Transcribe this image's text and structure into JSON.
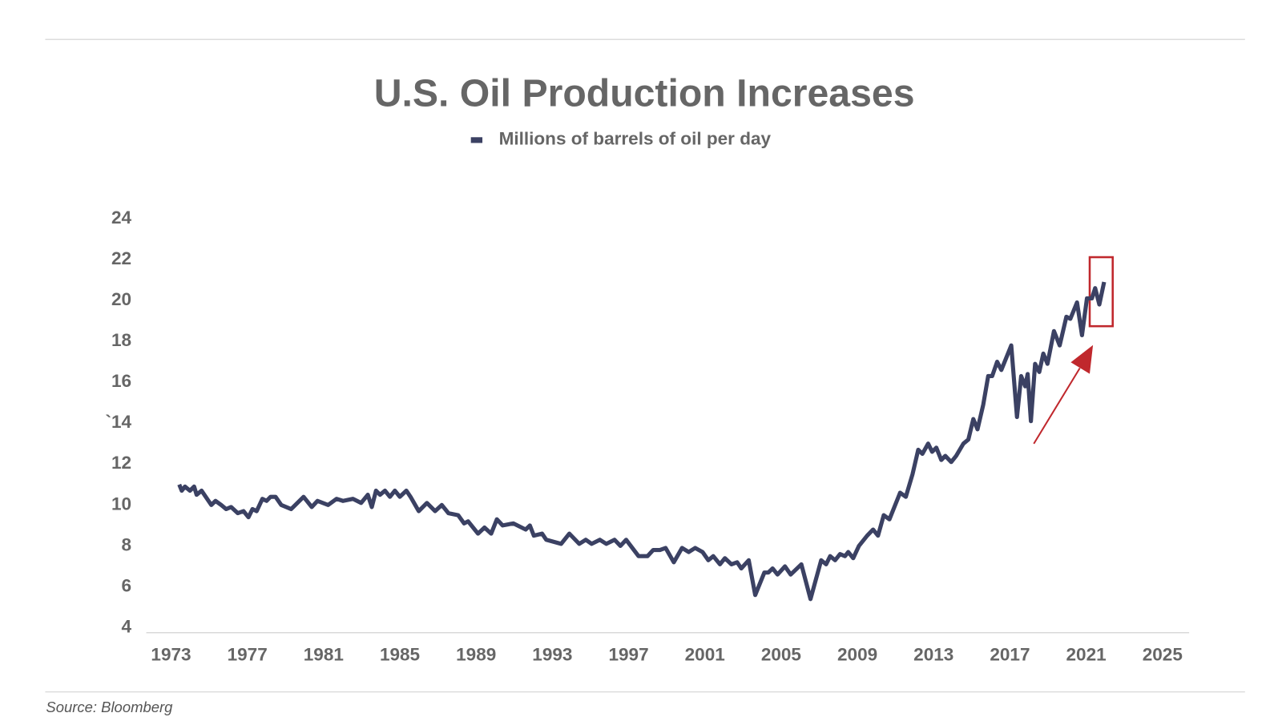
{
  "chart_data": {
    "type": "line",
    "title": "U.S. Oil Production Increases",
    "source": "Source: Bloomberg",
    "x": [
      1973.43,
      1973.56,
      1973.73,
      1973.99,
      1974.21,
      1974.34,
      1974.6,
      1975.11,
      1975.33,
      1975.63,
      1975.89,
      1976.15,
      1976.5,
      1976.8,
      1977.06,
      1977.27,
      1977.49,
      1977.79,
      1978.01,
      1978.22,
      1978.48,
      1978.78,
      1979.3,
      1979.95,
      1980.38,
      1980.68,
      1981.24,
      1981.68,
      1982.02,
      1982.54,
      1982.97,
      1983.32,
      1983.53,
      1983.75,
      1983.96,
      1984.22,
      1984.48,
      1984.74,
      1985.0,
      1985.34,
      1985.56,
      1985.99,
      1986.42,
      1986.85,
      1987.2,
      1987.55,
      1988.06,
      1988.37,
      1988.58,
      1989.1,
      1989.44,
      1989.79,
      1990.09,
      1990.39,
      1990.95,
      1991.6,
      1991.82,
      1992.03,
      1992.46,
      1992.68,
      1993.46,
      1993.89,
      1994.41,
      1994.75,
      1995.06,
      1995.49,
      1995.83,
      1996.26,
      1996.57,
      1996.87,
      1997.52,
      1997.99,
      1998.29,
      1998.64,
      1998.94,
      1999.37,
      1999.8,
      2000.15,
      2000.49,
      2000.88,
      2001.18,
      2001.44,
      2001.79,
      2002.05,
      2002.39,
      2002.69,
      2002.91,
      2003.3,
      2003.64,
      2004.12,
      2004.33,
      2004.55,
      2004.81,
      2005.2,
      2005.5,
      2006.06,
      2006.54,
      2007.1,
      2007.36,
      2007.57,
      2007.83,
      2008.09,
      2008.35,
      2008.52,
      2008.78,
      2009.08,
      2009.51,
      2009.82,
      2010.08,
      2010.38,
      2010.68,
      2011.24,
      2011.54,
      2011.89,
      2012.19,
      2012.41,
      2012.71,
      2012.92,
      2013.14,
      2013.4,
      2013.61,
      2013.92,
      2014.18,
      2014.56,
      2014.82,
      2015.08,
      2015.3,
      2015.6,
      2015.86,
      2016.07,
      2016.33,
      2016.55,
      2016.81,
      2017.07,
      2017.37,
      2017.59,
      2017.8,
      2017.93,
      2018.1,
      2018.32,
      2018.54,
      2018.75,
      2018.97,
      2019.31,
      2019.61,
      2019.96,
      2020.17,
      2020.52,
      2020.78,
      2021.04,
      2021.3,
      2021.47,
      2021.69,
      2021.94
    ],
    "series": [
      {
        "name": "Millions of barrels of oil per day",
        "color": "#3b4163",
        "values": [
          11.0,
          10.7,
          10.9,
          10.7,
          10.9,
          10.5,
          10.7,
          10.0,
          10.2,
          10.0,
          9.8,
          9.9,
          9.6,
          9.7,
          9.4,
          9.8,
          9.7,
          10.3,
          10.2,
          10.4,
          10.4,
          10.0,
          9.8,
          10.4,
          9.9,
          10.2,
          10.0,
          10.3,
          10.2,
          10.3,
          10.1,
          10.5,
          9.9,
          10.7,
          10.5,
          10.7,
          10.4,
          10.7,
          10.4,
          10.7,
          10.4,
          9.7,
          10.1,
          9.7,
          10.0,
          9.6,
          9.5,
          9.1,
          9.2,
          8.6,
          8.9,
          8.6,
          9.3,
          9.0,
          9.1,
          8.8,
          9.0,
          8.5,
          8.6,
          8.3,
          8.1,
          8.6,
          8.1,
          8.3,
          8.1,
          8.3,
          8.1,
          8.3,
          8.0,
          8.3,
          7.5,
          7.5,
          7.8,
          7.8,
          7.9,
          7.2,
          7.9,
          7.7,
          7.9,
          7.7,
          7.3,
          7.5,
          7.1,
          7.4,
          7.1,
          7.2,
          6.9,
          7.3,
          5.6,
          6.7,
          6.7,
          6.9,
          6.6,
          7.0,
          6.6,
          7.1,
          5.4,
          7.3,
          7.1,
          7.5,
          7.3,
          7.6,
          7.5,
          7.7,
          7.4,
          8.0,
          8.5,
          8.8,
          8.5,
          9.5,
          9.3,
          10.6,
          10.4,
          11.5,
          12.7,
          12.5,
          13.0,
          12.6,
          12.8,
          12.2,
          12.4,
          12.1,
          12.4,
          13.0,
          13.2,
          14.2,
          13.7,
          14.9,
          16.3,
          16.3,
          17.0,
          16.6,
          17.2,
          17.8,
          14.3,
          16.3,
          15.8,
          16.4,
          14.1,
          16.9,
          16.5,
          17.4,
          16.9,
          18.5,
          17.8,
          19.2,
          19.1,
          19.9,
          18.3,
          20.1,
          20.1,
          20.6,
          19.8,
          20.9
        ]
      }
    ],
    "xlim": [
      1971.7,
      2026.4
    ],
    "xticks": [
      1973,
      1977,
      1981,
      1985,
      1989,
      1993,
      1997,
      2001,
      2005,
      2009,
      2013,
      2017,
      2021,
      2025
    ],
    "ylim": [
      4,
      24
    ],
    "yticks": [
      4,
      6,
      8,
      10,
      12,
      {
        "value": 14,
        "label": "`14"
      },
      16,
      18,
      20,
      22,
      24
    ],
    "grid": false,
    "legend": "top"
  }
}
